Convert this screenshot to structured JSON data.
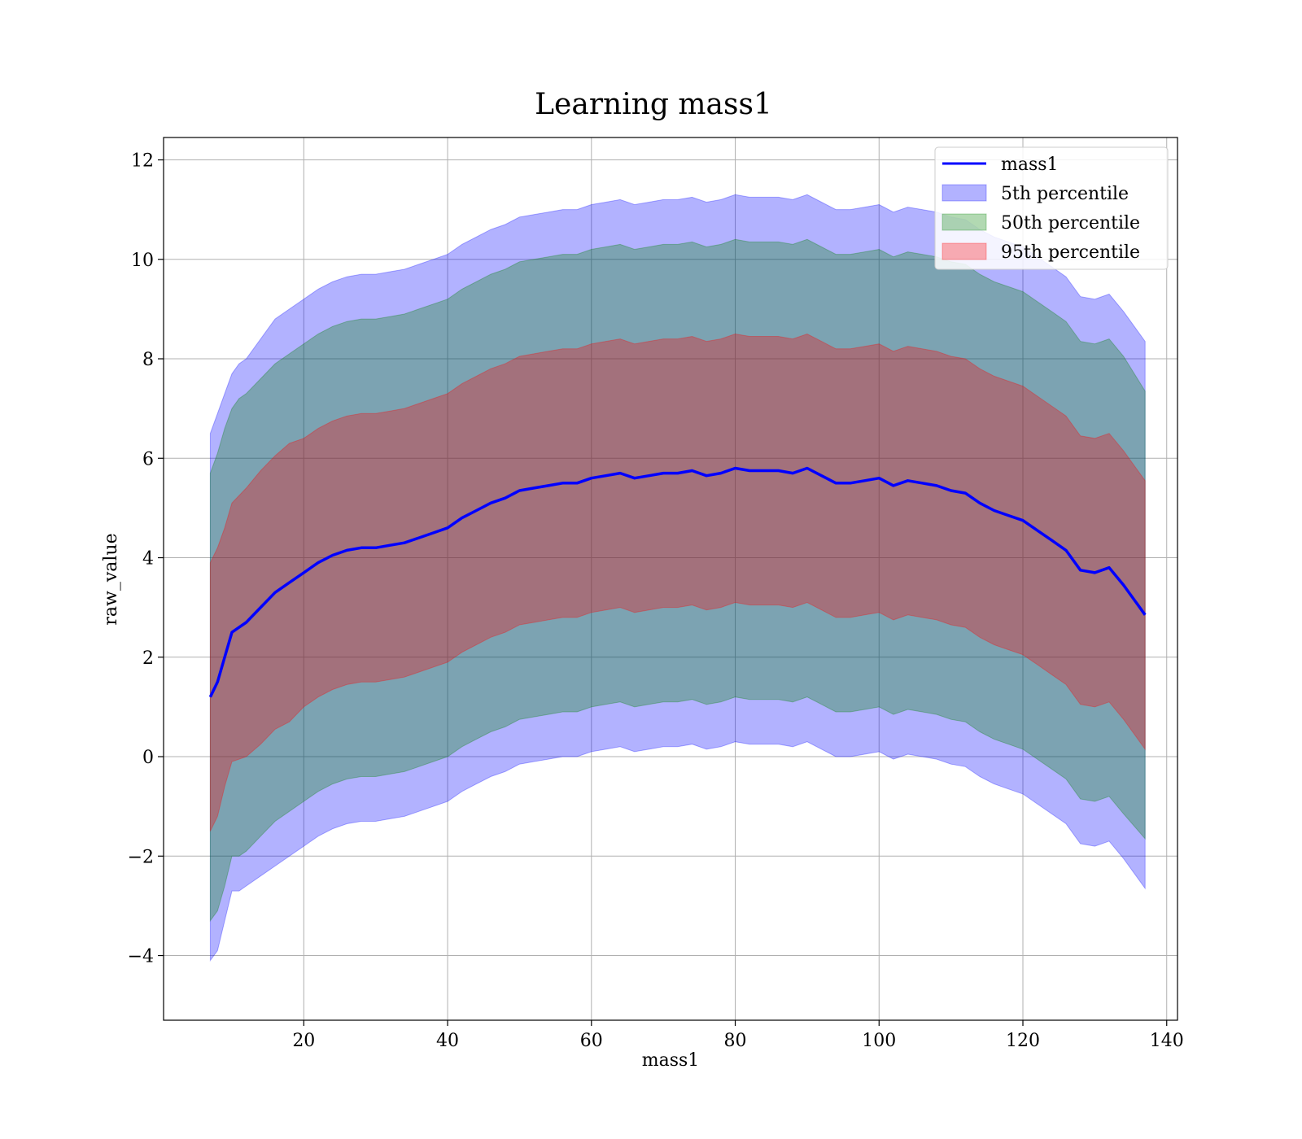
{
  "chart_data": {
    "type": "area",
    "title": "Learning mass1",
    "xlabel": "mass1",
    "ylabel": "raw_value",
    "xlim": [
      0.5,
      141.5
    ],
    "ylim": [
      -5.3,
      12.45
    ],
    "xticks": [
      20,
      40,
      60,
      80,
      100,
      120,
      140
    ],
    "yticks": [
      -4,
      -2,
      0,
      2,
      4,
      6,
      8,
      10,
      12
    ],
    "grid": true,
    "legend_position": "top-right",
    "line": {
      "name": "mass1",
      "color": "#0000ff",
      "x": [
        7,
        8,
        9,
        10,
        11,
        12,
        14,
        16,
        18,
        20,
        22,
        24,
        26,
        28,
        30,
        32,
        34,
        36,
        38,
        40,
        42,
        44,
        46,
        48,
        50,
        52,
        54,
        56,
        58,
        60,
        62,
        64,
        66,
        68,
        70,
        72,
        74,
        76,
        78,
        80,
        82,
        84,
        86,
        88,
        90,
        92,
        94,
        96,
        98,
        100,
        102,
        104,
        106,
        108,
        110,
        112,
        114,
        116,
        118,
        120,
        122,
        124,
        126,
        128,
        130,
        132,
        134,
        137
      ],
      "y": [
        1.2,
        1.5,
        2.0,
        2.5,
        2.6,
        2.7,
        3.0,
        3.3,
        3.5,
        3.7,
        3.9,
        4.05,
        4.15,
        4.2,
        4.2,
        4.25,
        4.3,
        4.4,
        4.5,
        4.6,
        4.8,
        4.95,
        5.1,
        5.2,
        5.35,
        5.4,
        5.45,
        5.5,
        5.5,
        5.6,
        5.65,
        5.7,
        5.6,
        5.65,
        5.7,
        5.7,
        5.75,
        5.65,
        5.7,
        5.8,
        5.75,
        5.75,
        5.75,
        5.7,
        5.8,
        5.65,
        5.5,
        5.5,
        5.55,
        5.6,
        5.45,
        5.55,
        5.5,
        5.45,
        5.35,
        5.3,
        5.1,
        4.95,
        4.85,
        4.75,
        4.55,
        4.35,
        4.15,
        3.75,
        3.7,
        3.8,
        3.45,
        2.85
      ]
    },
    "bands": [
      {
        "name": "5th percentile",
        "color": "#0000ff",
        "opacity": 0.3,
        "half_width": [
          5.3,
          5.4,
          5.3,
          5.2,
          5.3,
          5.3,
          5.4,
          5.5,
          5.5,
          5.5,
          5.5,
          5.5,
          5.5,
          5.5,
          5.5,
          5.5,
          5.5,
          5.5,
          5.5,
          5.5,
          5.5,
          5.5,
          5.5,
          5.5,
          5.5,
          5.5,
          5.5,
          5.5,
          5.5,
          5.5,
          5.5,
          5.5,
          5.5,
          5.5,
          5.5,
          5.5,
          5.5,
          5.5,
          5.5,
          5.5,
          5.5,
          5.5,
          5.5,
          5.5,
          5.5,
          5.5,
          5.5,
          5.5,
          5.5,
          5.5,
          5.5,
          5.5,
          5.5,
          5.5,
          5.5,
          5.5,
          5.5,
          5.5,
          5.5,
          5.5,
          5.5,
          5.5,
          5.5,
          5.5,
          5.5,
          5.5,
          5.5,
          5.5
        ]
      },
      {
        "name": "50th percentile",
        "color": "#008000",
        "opacity": 0.3,
        "half_width": [
          4.5,
          4.6,
          4.6,
          4.5,
          4.6,
          4.6,
          4.6,
          4.6,
          4.6,
          4.6,
          4.6,
          4.6,
          4.6,
          4.6,
          4.6,
          4.6,
          4.6,
          4.6,
          4.6,
          4.6,
          4.6,
          4.6,
          4.6,
          4.6,
          4.6,
          4.6,
          4.6,
          4.6,
          4.6,
          4.6,
          4.6,
          4.6,
          4.6,
          4.6,
          4.6,
          4.6,
          4.6,
          4.6,
          4.6,
          4.6,
          4.6,
          4.6,
          4.6,
          4.6,
          4.6,
          4.6,
          4.6,
          4.6,
          4.6,
          4.6,
          4.6,
          4.6,
          4.6,
          4.6,
          4.6,
          4.6,
          4.6,
          4.6,
          4.6,
          4.6,
          4.6,
          4.6,
          4.6,
          4.6,
          4.6,
          4.6,
          4.6,
          4.5
        ]
      },
      {
        "name": "95th percentile",
        "color": "#ff0000",
        "opacity": 0.3,
        "half_width": [
          2.7,
          2.7,
          2.6,
          2.6,
          2.65,
          2.7,
          2.75,
          2.75,
          2.8,
          2.7,
          2.7,
          2.7,
          2.7,
          2.7,
          2.7,
          2.7,
          2.7,
          2.7,
          2.7,
          2.7,
          2.7,
          2.7,
          2.7,
          2.7,
          2.7,
          2.7,
          2.7,
          2.7,
          2.7,
          2.7,
          2.7,
          2.7,
          2.7,
          2.7,
          2.7,
          2.7,
          2.7,
          2.7,
          2.7,
          2.7,
          2.7,
          2.7,
          2.7,
          2.7,
          2.7,
          2.7,
          2.7,
          2.7,
          2.7,
          2.7,
          2.7,
          2.7,
          2.7,
          2.7,
          2.7,
          2.7,
          2.7,
          2.7,
          2.7,
          2.7,
          2.7,
          2.7,
          2.7,
          2.7,
          2.7,
          2.7,
          2.7,
          2.7
        ]
      }
    ],
    "legend": [
      "mass1",
      "5th percentile",
      "50th percentile",
      "95th percentile"
    ]
  }
}
